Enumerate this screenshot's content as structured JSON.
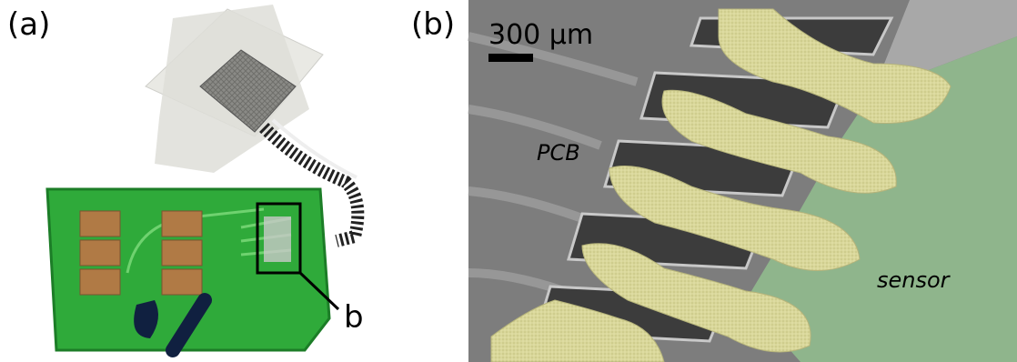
{
  "panels": [
    {
      "label": "(a)",
      "callout": "b"
    },
    {
      "label": "(b)",
      "scale_bar": "300 µm",
      "annotations": [
        "PCB",
        "sensor"
      ]
    }
  ]
}
